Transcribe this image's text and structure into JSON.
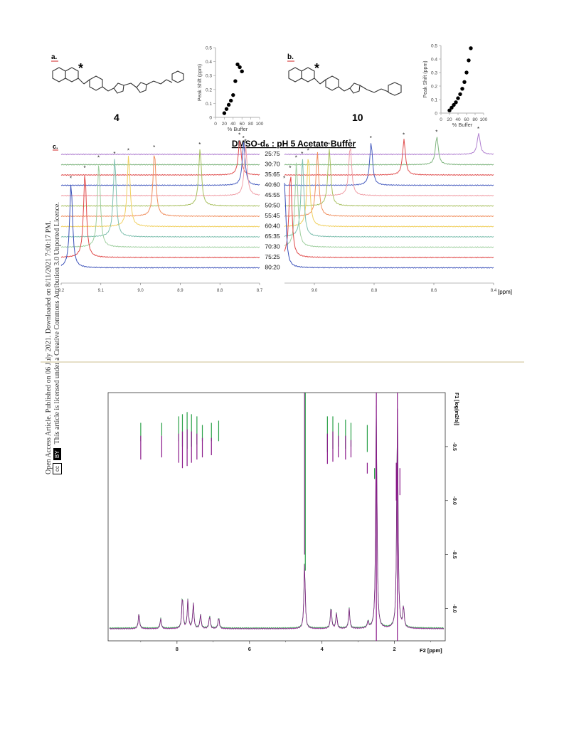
{
  "side_note": {
    "line1": "Open Access Article. Published on 06 July 2021. Downloaded on 8/11/2021 7:00:17 PM.",
    "line2": "This article is licensed under a Creative Commons Attribution 3.0 Unported Licence.",
    "cc_badge": "cc",
    "by_badge": "BY"
  },
  "panel_a": {
    "label": "a.",
    "compound": "4",
    "star": "*"
  },
  "panel_b": {
    "label": "b.",
    "compound": "10",
    "star": "*"
  },
  "panel_c": {
    "label": "c.",
    "title": "DMSO-d₆ : pH 5 Acetate Buffer",
    "axis_unit": "[ppm]"
  },
  "spectrum2d": {
    "f1_label": "F1 [log(m2/s)]",
    "f2_label": "F2 [ppm]"
  },
  "colors": {
    "trace_purple": "#b07fd0",
    "trace_green": "#7fb57f",
    "trace_red": "#e05050",
    "trace_blue": "#4a5fc0",
    "trace_pink": "#f0a0a8",
    "trace_olive": "#a8c060",
    "trace_orange": "#f09060",
    "trace_yellow": "#f0d060",
    "trace_teal": "#80c0b0",
    "dosy_green": "#2aa048",
    "dosy_purple": "#8a1a8a"
  },
  "chart_data": [
    {
      "type": "scatter",
      "name": "panel-a-scatter",
      "xlabel": "% Buffer",
      "ylabel": "Peak Shift (ppm)",
      "xlim": [
        0,
        100
      ],
      "ylim": [
        0,
        0.5
      ],
      "x_ticks": [
        "0",
        "20",
        "40",
        "60",
        "80",
        "100"
      ],
      "y_ticks": [
        "0",
        "0.1",
        "0.2",
        "0.3",
        "0.4",
        "0.5"
      ],
      "x": [
        20,
        25,
        30,
        35,
        40,
        45,
        50,
        55,
        60
      ],
      "y": [
        0.03,
        0.06,
        0.09,
        0.12,
        0.16,
        0.26,
        0.38,
        0.36,
        0.33
      ]
    },
    {
      "type": "scatter",
      "name": "panel-b-scatter",
      "xlabel": "% Buffer",
      "ylabel": "Peak Shift (ppm)",
      "xlim": [
        0,
        100
      ],
      "ylim": [
        0,
        0.5
      ],
      "x_ticks": [
        "0",
        "20",
        "40",
        "60",
        "80",
        "100"
      ],
      "y_ticks": [
        "0",
        "0.1",
        "0.2",
        "0.3",
        "0.4",
        "0.5"
      ],
      "x": [
        20,
        25,
        30,
        35,
        40,
        45,
        50,
        55,
        60,
        65,
        70
      ],
      "y": [
        0.02,
        0.04,
        0.06,
        0.08,
        0.11,
        0.14,
        0.18,
        0.23,
        0.3,
        0.39,
        0.48
      ]
    },
    {
      "type": "line",
      "name": "panel-c-stacked-spectra",
      "ratios": [
        "25:75",
        "30:70",
        "35:65",
        "40:60",
        "45:55",
        "50:50",
        "55:45",
        "60:40",
        "65:35",
        "70:30",
        "75:25",
        "80:20"
      ],
      "left_x_ticks": [
        "9.2",
        "9.1",
        "9.0",
        "8.9",
        "8.8",
        "8.7"
      ],
      "left_xlim": [
        9.2,
        8.7
      ],
      "right_x_ticks": [
        "9.0",
        "8.8",
        "8.6",
        "8.4"
      ],
      "right_xlim": [
        9.1,
        8.4
      ],
      "left_peaks": [
        null,
        null,
        8.75,
        8.74,
        8.735,
        8.85,
        8.965,
        9.03,
        9.065,
        9.105,
        9.14,
        9.175
      ],
      "right_peaks": [
        8.45,
        8.59,
        8.7,
        8.81,
        8.88,
        8.95,
        8.99,
        9.02,
        9.04,
        9.06,
        9.08,
        9.1
      ]
    },
    {
      "type": "heatmap",
      "name": "dosy-2d-spectrum",
      "xlabel": "F2 [ppm]",
      "ylabel": "F1 [log(m2/s)]",
      "x_ticks": [
        "8",
        "6",
        "4",
        "2"
      ],
      "y_ticks": [
        "-9.5",
        "-9.0",
        "-8.5",
        "-8.0"
      ],
      "xlim": [
        9.9,
        0.6
      ],
      "ylim": [
        -10.0,
        -7.7
      ]
    }
  ]
}
